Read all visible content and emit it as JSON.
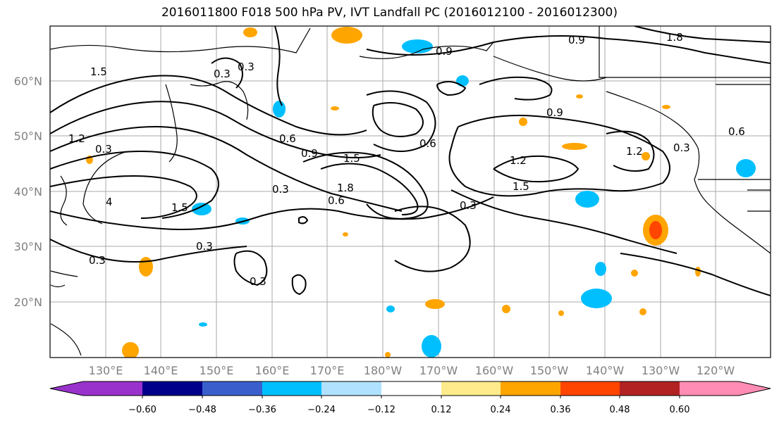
{
  "title": "2016011800 F018 500 hPa PV, IVT Landfall PC (2016012100 - 2016012300)",
  "lat_labels": [
    "60°N",
    "50°N",
    "40°N",
    "30°N",
    "20°N"
  ],
  "lon_labels": [
    "130°E",
    "140°E",
    "150°E",
    "160°E",
    "170°E",
    "180°W",
    "170°W",
    "160°W",
    "150°W",
    "140°W",
    "130°W",
    "120°W"
  ],
  "contour_labels": [
    "0.3",
    "0.6",
    "0.9",
    "1.2",
    "1.5",
    "1.8",
    "4"
  ],
  "colorbar": {
    "colors": [
      "#9932cc",
      "#00008b",
      "#3a5fcd",
      "#00bfff",
      "#b0e2ff",
      "#ffffff",
      "#ffeb8c",
      "#ffa500",
      "#ff4500",
      "#b22222",
      "#ff8cb4"
    ],
    "tick_labels": [
      "−0.60",
      "−0.48",
      "−0.36",
      "−0.24",
      "−0.12",
      "0.12",
      "0.24",
      "0.36",
      "0.48",
      "0.60"
    ]
  }
}
